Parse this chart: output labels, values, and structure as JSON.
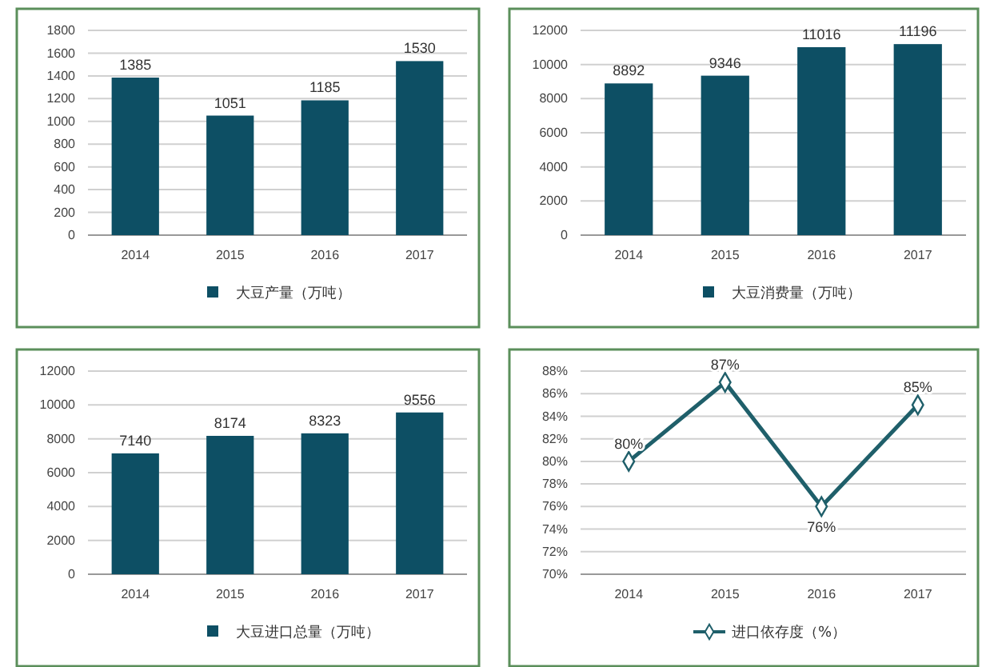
{
  "chart_data": [
    {
      "type": "bar",
      "categories": [
        "2014",
        "2015",
        "2016",
        "2017"
      ],
      "series": [
        {
          "name": "大豆产量（万吨）",
          "color": "#0d4f64",
          "values": [
            1385,
            1051,
            1185,
            1530
          ]
        }
      ],
      "ylim": [
        0,
        1800
      ],
      "yticks": [
        0,
        200,
        400,
        600,
        800,
        1000,
        1200,
        1400,
        1600,
        1800
      ],
      "grid": "y",
      "data_labels": true,
      "legend": "bottom"
    },
    {
      "type": "bar",
      "categories": [
        "2014",
        "2015",
        "2016",
        "2017"
      ],
      "series": [
        {
          "name": "大豆消费量（万吨）",
          "color": "#0d4f64",
          "values": [
            8892,
            9346,
            11016,
            11196
          ]
        }
      ],
      "ylim": [
        0,
        12000
      ],
      "yticks": [
        0,
        2000,
        4000,
        6000,
        8000,
        10000,
        12000
      ],
      "grid": "y",
      "data_labels": true,
      "legend": "bottom"
    },
    {
      "type": "bar",
      "categories": [
        "2014",
        "2015",
        "2016",
        "2017"
      ],
      "series": [
        {
          "name": "大豆进口总量（万吨）",
          "color": "#0d4f64",
          "values": [
            7140,
            8174,
            8323,
            9556
          ]
        }
      ],
      "ylim": [
        0,
        12000
      ],
      "yticks": [
        0,
        2000,
        4000,
        6000,
        8000,
        10000,
        12000
      ],
      "grid": "y",
      "data_labels": true,
      "legend": "bottom"
    },
    {
      "type": "line",
      "categories": [
        "2014",
        "2015",
        "2016",
        "2017"
      ],
      "series": [
        {
          "name": "进口依存度（%）",
          "color": "#1f5f6a",
          "values": [
            80,
            87,
            76,
            85
          ],
          "value_labels": [
            "80%",
            "87%",
            "76%",
            "85%"
          ]
        }
      ],
      "ylim": [
        70,
        88
      ],
      "yticks": [
        {
          "value": 70,
          "label": "70%"
        },
        {
          "value": 72,
          "label": "72%"
        },
        {
          "value": 74,
          "label": "74%"
        },
        {
          "value": 76,
          "label": "76%"
        },
        {
          "value": 78,
          "label": "78%"
        },
        {
          "value": 80,
          "label": "80%"
        },
        {
          "value": 82,
          "label": "82%"
        },
        {
          "value": 84,
          "label": "84%"
        },
        {
          "value": 86,
          "label": "86%"
        },
        {
          "value": 88,
          "label": "88%"
        }
      ],
      "grid": "y",
      "marker": "diamond",
      "legend": "bottom"
    }
  ]
}
